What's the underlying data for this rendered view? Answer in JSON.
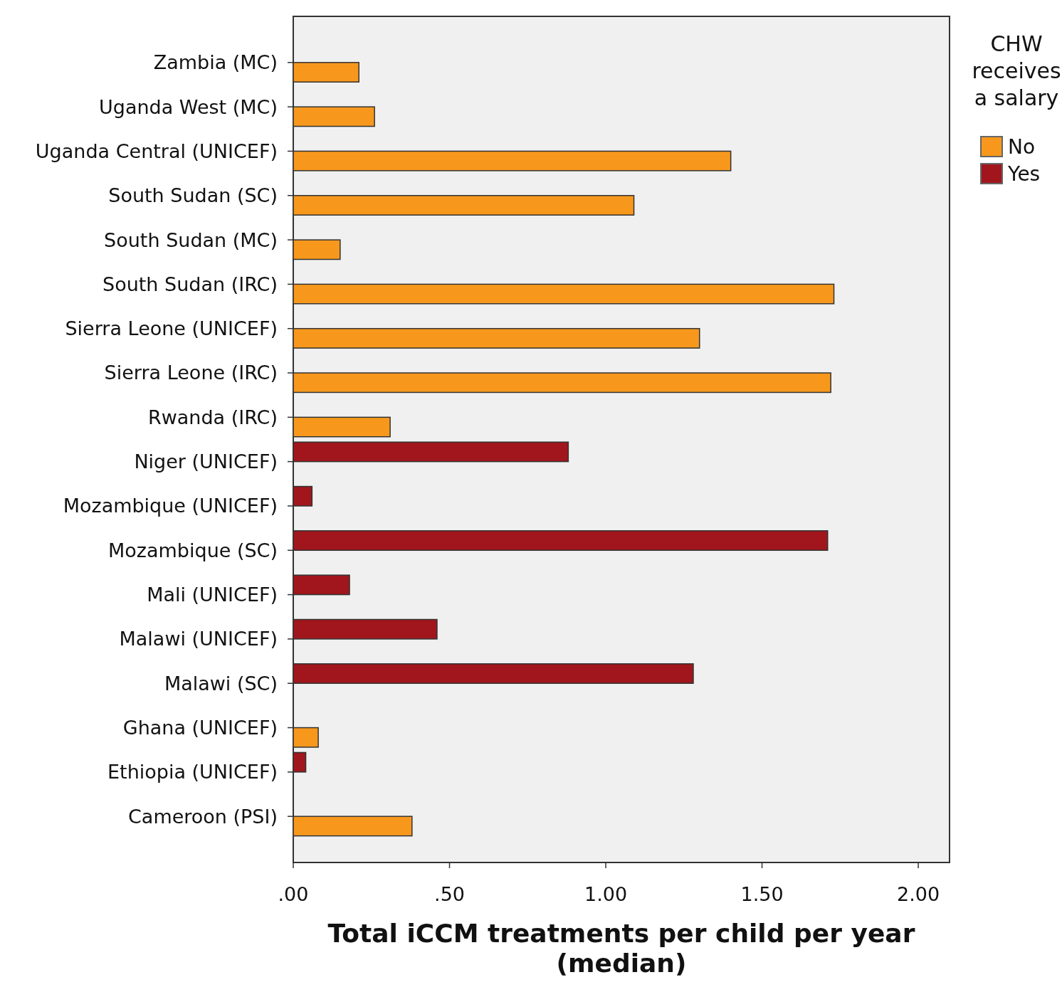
{
  "chart_data": {
    "type": "bar",
    "orientation": "horizontal",
    "xlabel": "Total iCCM treatments per child per year (median)",
    "legend_title": "CHW receives a salary",
    "legend": "right",
    "grid": false,
    "categories": [
      "Zambia (MC)",
      "Uganda West (MC)",
      "Uganda Central (UNICEF)",
      "South Sudan (SC)",
      "South Sudan (MC)",
      "South Sudan (IRC)",
      "Sierra Leone (UNICEF)",
      "Sierra Leone (IRC)",
      "Rwanda (IRC)",
      "Niger (UNICEF)",
      "Mozambique (UNICEF)",
      "Mozambique (SC)",
      "Mali (UNICEF)",
      "Malawi (UNICEF)",
      "Malawi (SC)",
      "Ghana (UNICEF)",
      "Ethiopia (UNICEF)",
      "Cameroon (PSI)"
    ],
    "series": [
      {
        "name": "No",
        "color": "#f7981d",
        "values": [
          0.21,
          0.26,
          1.4,
          1.09,
          0.15,
          1.73,
          1.3,
          1.72,
          0.31,
          null,
          null,
          null,
          null,
          null,
          null,
          0.08,
          null,
          0.38
        ]
      },
      {
        "name": "Yes",
        "color": "#a0161c",
        "values": [
          null,
          null,
          null,
          null,
          null,
          null,
          null,
          null,
          null,
          0.88,
          0.06,
          1.71,
          0.18,
          0.46,
          1.28,
          null,
          0.04,
          null
        ]
      }
    ],
    "xlim": [
      0,
      2.1
    ],
    "xticks": [
      {
        "value": 0,
        "label": ".00"
      },
      {
        "value": 0.5,
        "label": ".50"
      },
      {
        "value": 1,
        "label": "1.00"
      },
      {
        "value": 1.5,
        "label": "1.50"
      },
      {
        "value": 2,
        "label": "2.00"
      }
    ]
  }
}
